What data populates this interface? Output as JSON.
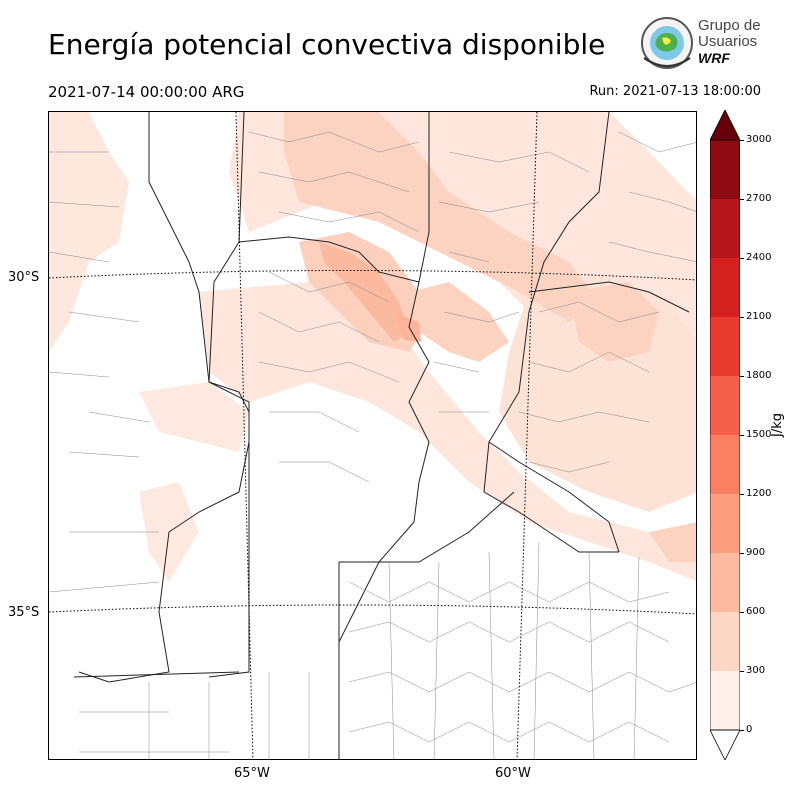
{
  "header": {
    "title": "Energía potencial convectiva disponible",
    "valid_time": "2021-07-14 00:00:00 ARG",
    "run_time": "Run: 2021-07-13 18:00:00"
  },
  "logo": {
    "line1": "Grupo de",
    "line2": "Usuarios",
    "line3": "WRF"
  },
  "map": {
    "lat_labels": [
      "30°S",
      "35°S"
    ],
    "lon_labels": [
      "65°W",
      "60°W"
    ],
    "fill_colors": [
      "#fee5d9",
      "#fcd0bc",
      "#fbb9a0"
    ]
  },
  "colorbar": {
    "unit": "J/kg",
    "ticks": [
      "0",
      "300",
      "600",
      "900",
      "1200",
      "1500",
      "1800",
      "2100",
      "2400",
      "2700",
      "3000"
    ],
    "colors": [
      "#fff0eb",
      "#fcd7c6",
      "#fcbba1",
      "#fc9d80",
      "#fb7f62",
      "#f5604a",
      "#ea3b2f",
      "#d4201f",
      "#b5151b",
      "#8e0b13",
      "#67000d"
    ]
  }
}
